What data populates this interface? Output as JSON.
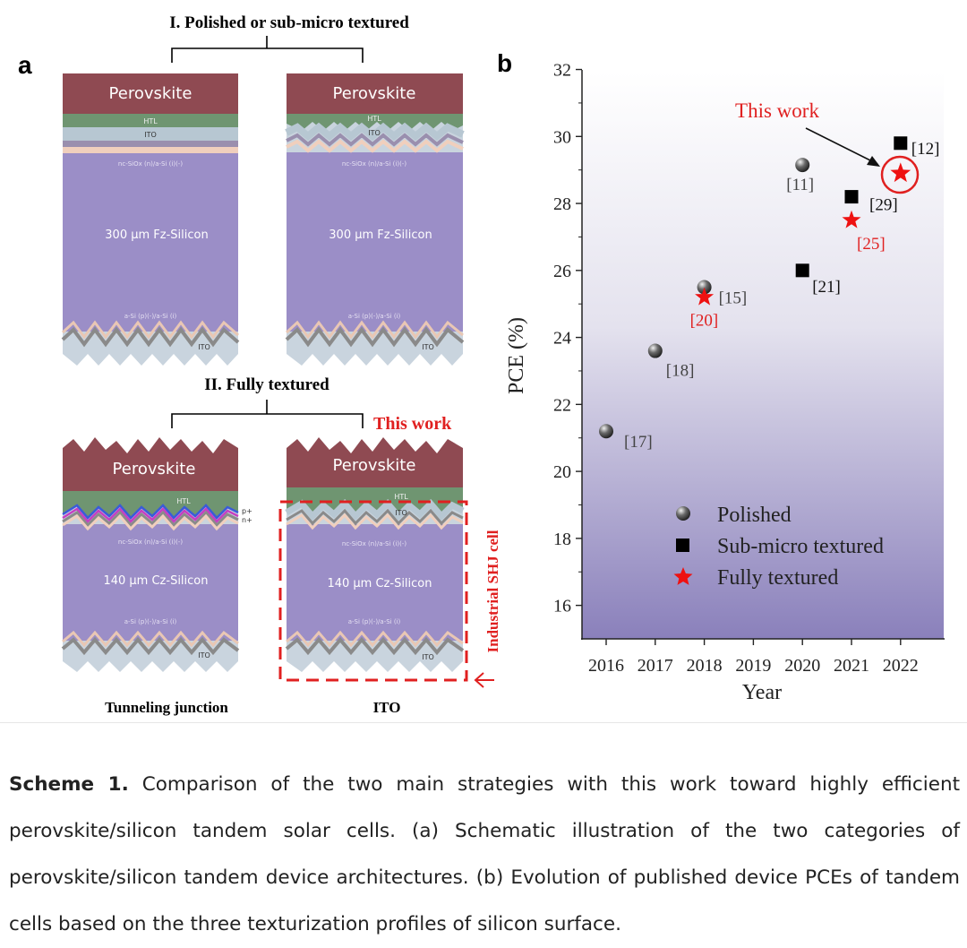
{
  "panel_a": {
    "letter": "a",
    "group_top_title": "I. Polished or sub-micro textured",
    "group_bottom_title": "II. Fully textured",
    "this_work_label": "This work",
    "industrial_label": "Industrial SHJ cell",
    "bottom_left_label": "Tunneling junction",
    "bottom_right_label": "ITO",
    "cells": [
      {
        "perovskite": "Perovskite",
        "htl": "HTL",
        "ito_top": "ITO",
        "nc_layer": "nc-SiOx (n)/a-Si (i)(-)",
        "silicon": "300 μm Fz-Silicon",
        "asi_layer": "a-Si (p)(-)/a-Si (i)",
        "ito_bottom": "ITO"
      },
      {
        "perovskite": "Perovskite",
        "htl": "HTL",
        "ito_top": "ITO",
        "nc_layer": "nc-SiOx (n)/a-Si (i)(-)",
        "silicon": "300 μm Fz-Silicon",
        "asi_layer": "a-Si (p)(-)/a-Si (i)",
        "ito_bottom": "ITO"
      },
      {
        "perovskite": "Perovskite",
        "htl": "HTL",
        "p_label": "p+",
        "n_label": "n+",
        "nc_layer": "nc-SiOx (n)/a-Si (i)(-)",
        "silicon": "140 μm Cz-Silicon",
        "asi_layer": "a-Si (p)(-)/a-Si (i)",
        "ito_bottom": "ITO"
      },
      {
        "perovskite": "Perovskite",
        "htl": "HTL",
        "ito_top": "ITO",
        "nc_layer": "nc-SiOx (n)/a-Si (i)(-)",
        "silicon": "140 μm Cz-Silicon",
        "asi_layer": "a-Si (p)(-)/a-Si (i)",
        "ito_bottom": "ITO"
      }
    ]
  },
  "panel_b": {
    "letter": "b",
    "this_work_label": "This work",
    "legend": [
      "Polished",
      "Sub-micro textured",
      "Fully textured"
    ]
  },
  "chart_data": {
    "type": "scatter",
    "title": "",
    "xlabel": "Year",
    "ylabel": "PCE (%)",
    "xlim": [
      2015.5,
      2022.9
    ],
    "ylim": [
      15,
      32
    ],
    "x_ticks": [
      2016,
      2017,
      2018,
      2019,
      2020,
      2021,
      2022
    ],
    "y_ticks": [
      16,
      18,
      20,
      22,
      24,
      26,
      28,
      30,
      32
    ],
    "series": [
      {
        "name": "Polished",
        "marker": "sphere",
        "color": "#555555",
        "points": [
          {
            "x": 2016,
            "y": 21.2,
            "ref": "[17]"
          },
          {
            "x": 2017,
            "y": 23.6,
            "ref": "[18]"
          },
          {
            "x": 2018,
            "y": 25.5,
            "ref": "[15]"
          },
          {
            "x": 2020,
            "y": 29.15,
            "ref": "[11]"
          }
        ]
      },
      {
        "name": "Sub-micro textured",
        "marker": "square",
        "color": "#000000",
        "points": [
          {
            "x": 2020,
            "y": 26.0,
            "ref": "[21]"
          },
          {
            "x": 2021,
            "y": 28.2,
            "ref": "[29]"
          },
          {
            "x": 2022,
            "y": 29.8,
            "ref": "[12]"
          }
        ]
      },
      {
        "name": "Fully textured",
        "marker": "star",
        "color": "#ee1111",
        "points": [
          {
            "x": 2018,
            "y": 25.2,
            "ref": "[20]"
          },
          {
            "x": 2021,
            "y": 27.5,
            "ref": "[25]"
          },
          {
            "x": 2022,
            "y": 28.9,
            "ref": "",
            "this_work": true
          }
        ]
      }
    ]
  },
  "caption": {
    "label": "Scheme 1.",
    "text": " Comparison of the two main strategies with this work toward highly efficient perovskite/silicon tandem solar cells. (a) Schematic illustration of the two categories of perovskite/silicon tandem device architectures. (b) Evolution of published device PCEs of tandem cells based on the three texturization profiles of silicon surface."
  }
}
